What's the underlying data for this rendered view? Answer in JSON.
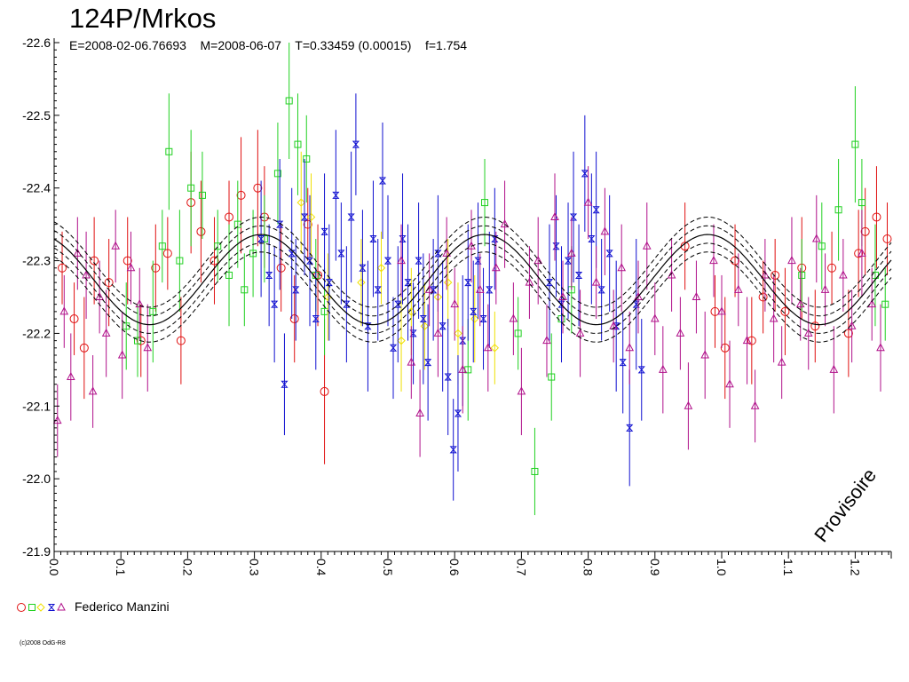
{
  "title": "124P/Mrkos",
  "subtitle": "E=2008-02-06.76693    M=2008-06-07    T=0.33459 (0.00015)    f=1.754",
  "watermark": "Provisoire",
  "legend": {
    "label": "Federico Manzini"
  },
  "copyright": "(c)2008 OdG-R8",
  "colors": {
    "red": "#e01010",
    "green": "#20d020",
    "yellow": "#f0e000",
    "blue": "#1010d0",
    "purple": "#b0108a",
    "fit": "#000000"
  },
  "chart_data": {
    "type": "scatter",
    "xlabel": "",
    "ylabel": "",
    "xlim": [
      0.0,
      1.254
    ],
    "ylim": [
      -22.6,
      -21.9
    ],
    "y_reversed": true,
    "x_ticks": [
      "0.0",
      "0.1",
      "0.2",
      "0.3",
      "0.4",
      "0.5",
      "0.6",
      "0.7",
      "0.8",
      "0.9",
      "1.0",
      "1.1",
      "1.2"
    ],
    "y_ticks": [
      "-22.6",
      "-22.5",
      "-22.4",
      "-22.3",
      "-22.2",
      "-22.1",
      "-22.0",
      "-21.9"
    ],
    "fit": {
      "period": 0.33459,
      "mean": -22.274,
      "amplitude": 0.062,
      "phase_of_max": 0.31,
      "band_offsets": [
        -0.024,
        -0.012,
        0.012,
        0.024
      ]
    },
    "series": [
      {
        "symbol": "circle",
        "color": "red",
        "points": [
          [
            0.012,
            -22.29,
            0.05
          ],
          [
            0.03,
            -22.22,
            0.05
          ],
          [
            0.045,
            -22.18,
            0.07
          ],
          [
            0.06,
            -22.3,
            0.06
          ],
          [
            0.082,
            -22.27,
            0.06
          ],
          [
            0.11,
            -22.3,
            0.06
          ],
          [
            0.13,
            -22.19,
            0.05
          ],
          [
            0.152,
            -22.29,
            0.06
          ],
          [
            0.17,
            -22.31,
            0.05
          ],
          [
            0.19,
            -22.19,
            0.06
          ],
          [
            0.205,
            -22.38,
            0.07
          ],
          [
            0.22,
            -22.34,
            0.07
          ],
          [
            0.24,
            -22.3,
            0.06
          ],
          [
            0.262,
            -22.36,
            0.05
          ],
          [
            0.28,
            -22.39,
            0.08
          ],
          [
            0.305,
            -22.4,
            0.08
          ],
          [
            0.315,
            -22.36,
            0.07
          ],
          [
            0.34,
            -22.29,
            0.06
          ],
          [
            0.36,
            -22.22,
            0.06
          ],
          [
            0.38,
            -22.35,
            0.05
          ],
          [
            0.395,
            -22.28,
            0.07
          ],
          [
            0.405,
            -22.12,
            0.1
          ],
          [
            0.945,
            -22.32,
            0.06
          ],
          [
            0.99,
            -22.23,
            0.05
          ],
          [
            1.005,
            -22.18,
            0.07
          ],
          [
            1.02,
            -22.3,
            0.05
          ],
          [
            1.045,
            -22.19,
            0.06
          ],
          [
            1.062,
            -22.25,
            0.05
          ],
          [
            1.08,
            -22.28,
            0.05
          ],
          [
            1.095,
            -22.23,
            0.06
          ],
          [
            1.12,
            -22.29,
            0.07
          ],
          [
            1.14,
            -22.21,
            0.05
          ],
          [
            1.165,
            -22.29,
            0.05
          ],
          [
            1.19,
            -22.2,
            0.06
          ],
          [
            1.205,
            -22.31,
            0.06
          ],
          [
            1.215,
            -22.34,
            0.06
          ],
          [
            1.232,
            -22.36,
            0.07
          ],
          [
            1.248,
            -22.33,
            0.05
          ]
        ]
      },
      {
        "symbol": "square",
        "color": "green",
        "points": [
          [
            0.108,
            -22.21,
            0.06
          ],
          [
            0.125,
            -22.19,
            0.05
          ],
          [
            0.148,
            -22.23,
            0.07
          ],
          [
            0.162,
            -22.32,
            0.05
          ],
          [
            0.172,
            -22.45,
            0.08
          ],
          [
            0.188,
            -22.3,
            0.07
          ],
          [
            0.205,
            -22.4,
            0.08
          ],
          [
            0.222,
            -22.39,
            0.06
          ],
          [
            0.245,
            -22.32,
            0.05
          ],
          [
            0.262,
            -22.28,
            0.07
          ],
          [
            0.275,
            -22.35,
            0.06
          ],
          [
            0.285,
            -22.26,
            0.05
          ],
          [
            0.298,
            -22.31,
            0.06
          ],
          [
            0.315,
            -22.33,
            0.06
          ],
          [
            0.335,
            -22.42,
            0.07
          ],
          [
            0.352,
            -22.52,
            0.08
          ],
          [
            0.365,
            -22.46,
            0.07
          ],
          [
            0.378,
            -22.44,
            0.06
          ],
          [
            0.392,
            -22.28,
            0.05
          ],
          [
            0.405,
            -22.23,
            0.06
          ],
          [
            0.62,
            -22.15,
            0.07
          ],
          [
            0.645,
            -22.38,
            0.06
          ],
          [
            0.695,
            -22.2,
            0.05
          ],
          [
            0.72,
            -22.01,
            0.06
          ],
          [
            0.745,
            -22.14,
            0.06
          ],
          [
            0.76,
            -22.22,
            0.05
          ],
          [
            0.775,
            -22.26,
            0.06
          ],
          [
            1.12,
            -22.28,
            0.05
          ],
          [
            1.15,
            -22.32,
            0.06
          ],
          [
            1.175,
            -22.37,
            0.07
          ],
          [
            1.2,
            -22.46,
            0.08
          ],
          [
            1.21,
            -22.38,
            0.06
          ],
          [
            1.23,
            -22.28,
            0.07
          ],
          [
            1.245,
            -22.24,
            0.05
          ]
        ]
      },
      {
        "symbol": "diamond",
        "color": "yellow",
        "points": [
          [
            0.37,
            -22.38,
            0.07
          ],
          [
            0.385,
            -22.36,
            0.06
          ],
          [
            0.41,
            -22.25,
            0.06
          ],
          [
            0.46,
            -22.27,
            0.06
          ],
          [
            0.49,
            -22.29,
            0.05
          ],
          [
            0.52,
            -22.19,
            0.07
          ],
          [
            0.535,
            -22.23,
            0.06
          ],
          [
            0.555,
            -22.21,
            0.06
          ],
          [
            0.575,
            -22.25,
            0.05
          ],
          [
            0.59,
            -22.27,
            0.06
          ],
          [
            0.605,
            -22.2,
            0.07
          ],
          [
            0.63,
            -22.22,
            0.06
          ],
          [
            0.66,
            -22.18,
            0.05
          ]
        ]
      },
      {
        "symbol": "hourglass",
        "color": "blue",
        "points": [
          [
            0.31,
            -22.33,
            0.08
          ],
          [
            0.322,
            -22.28,
            0.07
          ],
          [
            0.33,
            -22.24,
            0.08
          ],
          [
            0.338,
            -22.35,
            0.09
          ],
          [
            0.345,
            -22.13,
            0.07
          ],
          [
            0.356,
            -22.31,
            0.09
          ],
          [
            0.362,
            -22.26,
            0.07
          ],
          [
            0.375,
            -22.36,
            0.08
          ],
          [
            0.383,
            -22.3,
            0.09
          ],
          [
            0.392,
            -22.22,
            0.07
          ],
          [
            0.405,
            -22.34,
            0.08
          ],
          [
            0.412,
            -22.27,
            0.08
          ],
          [
            0.422,
            -22.39,
            0.09
          ],
          [
            0.43,
            -22.31,
            0.07
          ],
          [
            0.438,
            -22.24,
            0.08
          ],
          [
            0.445,
            -22.36,
            0.09
          ],
          [
            0.452,
            -22.46,
            0.07
          ],
          [
            0.462,
            -22.29,
            0.08
          ],
          [
            0.47,
            -22.21,
            0.09
          ],
          [
            0.478,
            -22.33,
            0.08
          ],
          [
            0.485,
            -22.26,
            0.07
          ],
          [
            0.492,
            -22.41,
            0.08
          ],
          [
            0.5,
            -22.3,
            0.09
          ],
          [
            0.508,
            -22.18,
            0.07
          ],
          [
            0.515,
            -22.24,
            0.08
          ],
          [
            0.522,
            -22.33,
            0.09
          ],
          [
            0.53,
            -22.27,
            0.08
          ],
          [
            0.538,
            -22.2,
            0.07
          ],
          [
            0.546,
            -22.3,
            0.08
          ],
          [
            0.553,
            -22.22,
            0.09
          ],
          [
            0.56,
            -22.16,
            0.08
          ],
          [
            0.568,
            -22.26,
            0.07
          ],
          [
            0.575,
            -22.31,
            0.08
          ],
          [
            0.582,
            -22.21,
            0.09
          ],
          [
            0.59,
            -22.14,
            0.08
          ],
          [
            0.598,
            -22.04,
            0.07
          ],
          [
            0.605,
            -22.09,
            0.08
          ],
          [
            0.612,
            -22.19,
            0.09
          ],
          [
            0.62,
            -22.27,
            0.08
          ],
          [
            0.628,
            -22.23,
            0.07
          ],
          [
            0.635,
            -22.3,
            0.08
          ],
          [
            0.643,
            -22.22,
            0.07
          ],
          [
            0.652,
            -22.26,
            0.08
          ],
          [
            0.66,
            -22.33,
            0.07
          ],
          [
            0.742,
            -22.27,
            0.08
          ],
          [
            0.752,
            -22.32,
            0.07
          ],
          [
            0.76,
            -22.24,
            0.08
          ],
          [
            0.77,
            -22.3,
            0.08
          ],
          [
            0.778,
            -22.36,
            0.09
          ],
          [
            0.786,
            -22.28,
            0.07
          ],
          [
            0.795,
            -22.42,
            0.08
          ],
          [
            0.805,
            -22.33,
            0.09
          ],
          [
            0.812,
            -22.37,
            0.08
          ],
          [
            0.82,
            -22.26,
            0.07
          ],
          [
            0.832,
            -22.31,
            0.08
          ],
          [
            0.842,
            -22.21,
            0.09
          ],
          [
            0.852,
            -22.16,
            0.07
          ],
          [
            0.862,
            -22.07,
            0.08
          ],
          [
            0.872,
            -22.24,
            0.09
          ],
          [
            0.88,
            -22.15,
            0.07
          ]
        ]
      },
      {
        "symbol": "triangle",
        "color": "purple",
        "points": [
          [
            0.005,
            -22.08,
            0.05
          ],
          [
            0.015,
            -22.23,
            0.05
          ],
          [
            0.025,
            -22.14,
            0.06
          ],
          [
            0.035,
            -22.31,
            0.05
          ],
          [
            0.048,
            -22.28,
            0.06
          ],
          [
            0.058,
            -22.12,
            0.05
          ],
          [
            0.068,
            -22.25,
            0.05
          ],
          [
            0.078,
            -22.2,
            0.06
          ],
          [
            0.092,
            -22.32,
            0.05
          ],
          [
            0.102,
            -22.17,
            0.06
          ],
          [
            0.115,
            -22.29,
            0.05
          ],
          [
            0.128,
            -22.24,
            0.05
          ],
          [
            0.14,
            -22.18,
            0.06
          ],
          [
            0.52,
            -22.3,
            0.05
          ],
          [
            0.535,
            -22.16,
            0.05
          ],
          [
            0.548,
            -22.09,
            0.06
          ],
          [
            0.562,
            -22.26,
            0.05
          ],
          [
            0.575,
            -22.2,
            0.06
          ],
          [
            0.588,
            -22.31,
            0.05
          ],
          [
            0.6,
            -22.24,
            0.05
          ],
          [
            0.612,
            -22.15,
            0.06
          ],
          [
            0.625,
            -22.32,
            0.05
          ],
          [
            0.638,
            -22.26,
            0.05
          ],
          [
            0.65,
            -22.18,
            0.06
          ],
          [
            0.662,
            -22.29,
            0.05
          ],
          [
            0.675,
            -22.35,
            0.06
          ],
          [
            0.688,
            -22.22,
            0.05
          ],
          [
            0.7,
            -22.12,
            0.06
          ],
          [
            0.712,
            -22.27,
            0.05
          ],
          [
            0.725,
            -22.3,
            0.06
          ],
          [
            0.738,
            -22.19,
            0.05
          ],
          [
            0.75,
            -22.36,
            0.06
          ],
          [
            0.762,
            -22.25,
            0.05
          ],
          [
            0.775,
            -22.31,
            0.05
          ],
          [
            0.788,
            -22.2,
            0.06
          ],
          [
            0.8,
            -22.38,
            0.05
          ],
          [
            0.812,
            -22.27,
            0.05
          ],
          [
            0.825,
            -22.34,
            0.06
          ],
          [
            0.838,
            -22.21,
            0.05
          ],
          [
            0.85,
            -22.29,
            0.06
          ],
          [
            0.862,
            -22.18,
            0.05
          ],
          [
            0.875,
            -22.25,
            0.05
          ],
          [
            0.888,
            -22.32,
            0.06
          ],
          [
            0.9,
            -22.22,
            0.05
          ],
          [
            0.912,
            -22.15,
            0.06
          ],
          [
            0.925,
            -22.28,
            0.05
          ],
          [
            0.938,
            -22.2,
            0.05
          ],
          [
            0.95,
            -22.1,
            0.06
          ],
          [
            0.962,
            -22.25,
            0.05
          ],
          [
            0.975,
            -22.17,
            0.06
          ],
          [
            0.988,
            -22.3,
            0.05
          ],
          [
            1.0,
            -22.23,
            0.05
          ],
          [
            1.012,
            -22.13,
            0.06
          ],
          [
            1.025,
            -22.26,
            0.05
          ],
          [
            1.038,
            -22.19,
            0.06
          ],
          [
            1.05,
            -22.1,
            0.05
          ],
          [
            1.065,
            -22.28,
            0.05
          ],
          [
            1.078,
            -22.22,
            0.06
          ],
          [
            1.09,
            -22.16,
            0.05
          ],
          [
            1.105,
            -22.3,
            0.06
          ],
          [
            1.118,
            -22.24,
            0.05
          ],
          [
            1.13,
            -22.2,
            0.05
          ],
          [
            1.142,
            -22.33,
            0.06
          ],
          [
            1.155,
            -22.26,
            0.05
          ],
          [
            1.168,
            -22.15,
            0.06
          ],
          [
            1.182,
            -22.28,
            0.05
          ],
          [
            1.195,
            -22.21,
            0.05
          ],
          [
            1.21,
            -22.31,
            0.06
          ],
          [
            1.225,
            -22.24,
            0.05
          ],
          [
            1.238,
            -22.18,
            0.06
          ]
        ]
      }
    ]
  }
}
